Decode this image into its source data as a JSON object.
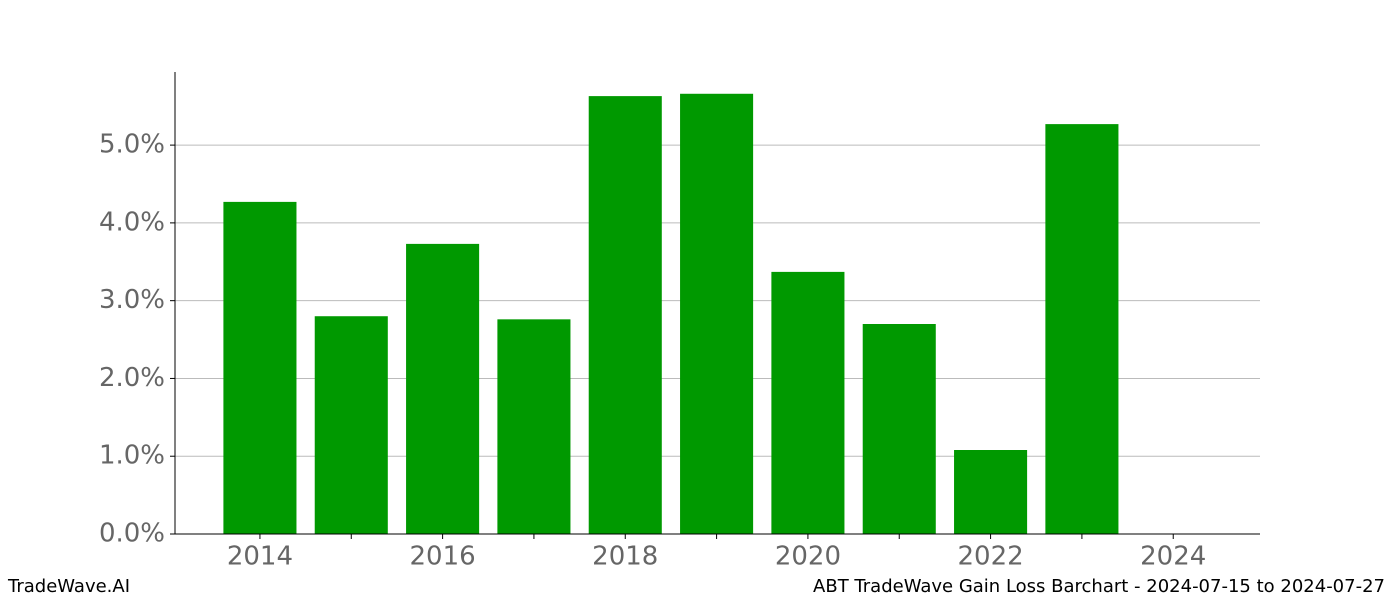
{
  "chart_data": {
    "type": "bar",
    "title": "ABT TradeWave Gain Loss Barchart - 2024-07-15 to 2024-07-27",
    "watermark": "TradeWave.AI",
    "x": [
      2014,
      2015,
      2016,
      2017,
      2018,
      2019,
      2020,
      2021,
      2022,
      2023
    ],
    "values": [
      4.27,
      2.8,
      3.73,
      2.76,
      5.63,
      5.66,
      3.37,
      2.7,
      1.08,
      5.27
    ],
    "color": "#009900",
    "xlim": [
      2013.07,
      2024.95
    ],
    "xticks": [
      2014,
      2016,
      2018,
      2020,
      2022,
      2024
    ],
    "xminorticks": [
      2015,
      2017,
      2019,
      2021,
      2023
    ],
    "ylim": [
      0,
      5.94
    ],
    "yticks": [
      {
        "value": 0,
        "label": "0.0%"
      },
      {
        "value": 1,
        "label": "1.0%"
      },
      {
        "value": 2,
        "label": "2.0%"
      },
      {
        "value": 3,
        "label": "3.0%"
      },
      {
        "value": 4,
        "label": "4.0%"
      },
      {
        "value": 5,
        "label": "5.0%"
      }
    ],
    "grid": true
  }
}
